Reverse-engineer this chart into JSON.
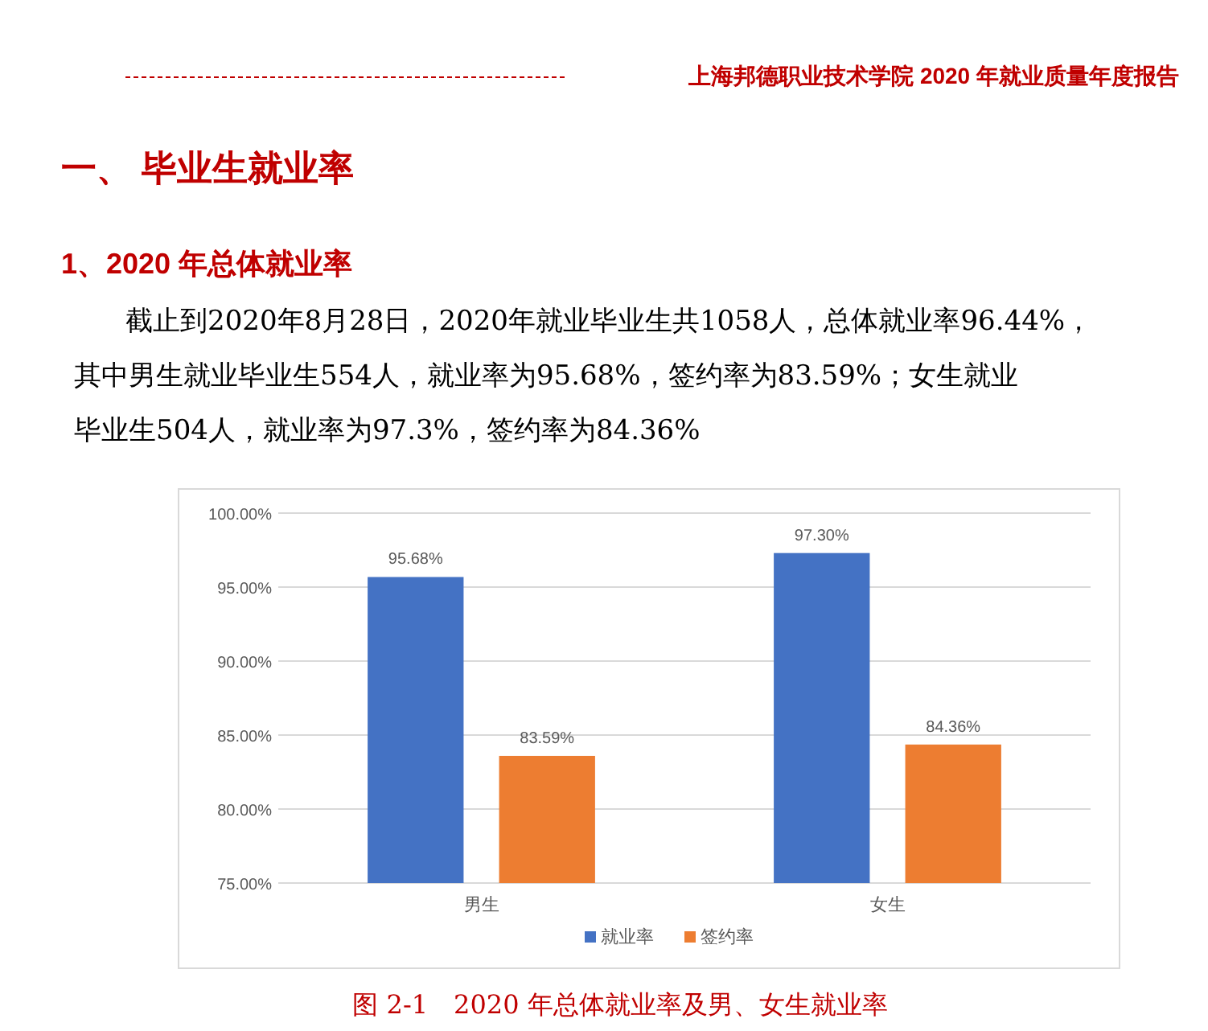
{
  "chart_data": {
    "type": "bar",
    "title": "一、 毕业生就业率",
    "subtitle": "1、2020 年总体就业率",
    "annotations": [
      "上海邦德职业技术学院 2020 年就业质量年度报告",
      "截止到2020年8月28日，2020年就业毕业生共1058人，总体就业率96.44%，其中男生就业毕业生554人，就业率为95.68%，签约率为83.59%；女生就业毕业生504人，就业率为97.3%，签约率为84.36%",
      "图 2-1　2020 年总体就业率及男、女生就业率"
    ],
    "categories": [
      "男生",
      "女生"
    ],
    "series": [
      {
        "name": "就业率",
        "color": "#4472c4",
        "values": [
          95.68,
          97.3
        ],
        "value_labels": [
          "95.68%",
          "97.30%"
        ]
      },
      {
        "name": "签约率",
        "color": "#ed7d31",
        "values": [
          83.59,
          84.36
        ],
        "value_labels": [
          "83.59%",
          "84.36%"
        ]
      }
    ],
    "ylim": [
      75,
      100
    ],
    "yticks": [
      {
        "value": 75,
        "label": "75.00%"
      },
      {
        "value": 80,
        "label": "80.00%"
      },
      {
        "value": 85,
        "label": "85.00%"
      },
      {
        "value": 90,
        "label": "90.00%"
      },
      {
        "value": 95,
        "label": "95.00%"
      },
      {
        "value": 100,
        "label": "100.00%"
      }
    ],
    "grid": "y",
    "legend": "bottom"
  }
}
